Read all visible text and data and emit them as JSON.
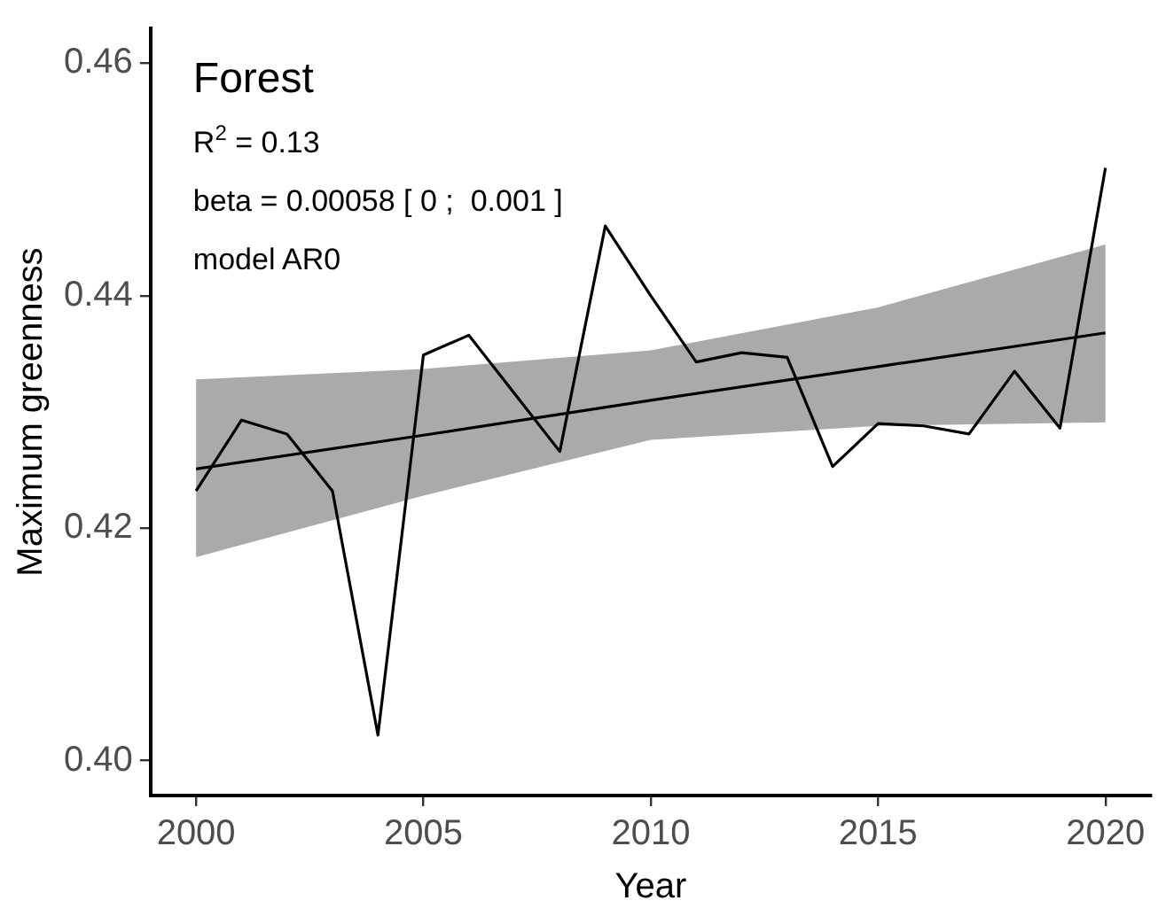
{
  "chart_data": {
    "type": "line",
    "title": "Forest",
    "xlabel": "Year",
    "ylabel": "Maximum greenness",
    "annotations": [
      "R$^{2}$ = 0.13",
      "beta = 0.00058 [ 0 ;  0.001 ]",
      "model AR0"
    ],
    "xlim": [
      1999,
      2021
    ],
    "ylim": [
      0.397,
      0.463
    ],
    "xticks": [
      2000,
      2005,
      2010,
      2015,
      2020
    ],
    "yticks": [
      {
        "value": 0.4,
        "label": "0.40"
      },
      {
        "value": 0.42,
        "label": "0.42"
      },
      {
        "value": 0.44,
        "label": "0.44"
      },
      {
        "value": 0.46,
        "label": "0.46"
      }
    ],
    "grid": false,
    "legend": false,
    "marker": "none",
    "line_style": "solid",
    "series": [
      {
        "color": "#000000",
        "x": [
          2000,
          2001,
          2002,
          2003,
          2004,
          2005,
          2006,
          2007,
          2008,
          2009,
          2010,
          2011,
          2012,
          2013,
          2014,
          2015,
          2016,
          2017,
          2018,
          2019,
          2020
        ],
        "values": [
          0.4232,
          0.4293,
          0.4281,
          0.4232,
          0.4022,
          0.4349,
          0.4366,
          0.4316,
          0.4266,
          0.446,
          0.44,
          0.4343,
          0.4351,
          0.4347,
          0.4253,
          0.429,
          0.4288,
          0.4281,
          0.4335,
          0.4286,
          0.451
        ]
      },
      {
        "color": "#000000",
        "x": [
          2000,
          2005,
          2010,
          2015,
          2020
        ],
        "values": [
          0.4251,
          0.428,
          0.431,
          0.4339,
          0.4368
        ],
        "lower": [
          0.4175,
          0.4228,
          0.4276,
          0.4288,
          0.4291
        ],
        "upper": [
          0.4328,
          0.4337,
          0.4353,
          0.439,
          0.4444
        ]
      }
    ]
  }
}
